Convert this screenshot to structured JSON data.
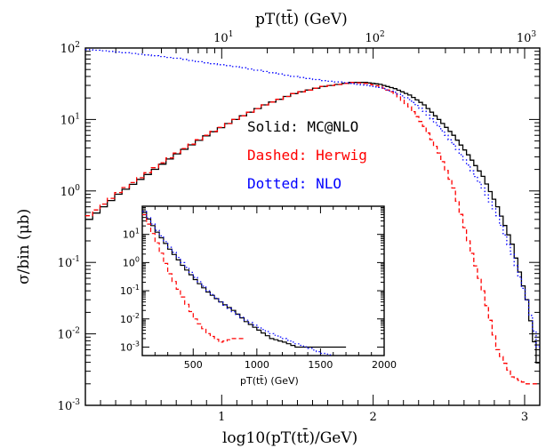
{
  "chart_data": [
    {
      "type": "line",
      "xlabel": "log10(pT(tt̄)/GeV)",
      "ylabel": "σ/bin (μb)",
      "top_axis_label": "pT(tt̄) (GeV)",
      "yscale": "log",
      "xlim": [
        0,
        3.1
      ],
      "ylim": [
        0.001,
        100
      ],
      "x_ticks": [
        "1",
        "2",
        "3"
      ],
      "y_ticks": [
        "10-3",
        "10-2",
        "10-1",
        "100",
        "101",
        "102"
      ],
      "top_ticks": [
        "101",
        "102",
        "103"
      ],
      "legend": {
        "solid": "Solid: MC@NLO",
        "dashed": "Dashed: Herwig",
        "dotted": "Dotted: NLO"
      },
      "colors": {
        "mcatnlo": "#000000",
        "herwig": "#ff0000",
        "nlo": "#0000ff"
      },
      "series": [
        {
          "name": "MC@NLO",
          "x": [
            0.0,
            0.2,
            0.4,
            0.6,
            0.8,
            1.0,
            1.2,
            1.4,
            1.6,
            1.8,
            1.9,
            2.0,
            2.1,
            2.2,
            2.3,
            2.4,
            2.5,
            2.6,
            2.7,
            2.8,
            2.9,
            3.0,
            3.1
          ],
          "y": [
            0.4,
            0.9,
            1.7,
            3.3,
            5.9,
            10,
            16,
            23,
            29,
            33,
            33,
            31,
            27,
            22,
            16,
            10,
            6,
            3.2,
            1.6,
            0.6,
            0.18,
            0.03,
            0.002
          ]
        },
        {
          "name": "Herwig",
          "x": [
            0.0,
            0.2,
            0.4,
            0.6,
            0.8,
            1.0,
            1.2,
            1.4,
            1.6,
            1.8,
            1.9,
            2.0,
            2.1,
            2.2,
            2.3,
            2.4,
            2.5,
            2.6,
            2.7,
            2.8,
            2.9,
            3.0,
            3.1
          ],
          "y": [
            0.45,
            0.95,
            1.8,
            3.4,
            6.0,
            10,
            16,
            23,
            29,
            33,
            32,
            29,
            23,
            15,
            8,
            3.4,
            1.1,
            0.2,
            0.04,
            0.006,
            0.0025,
            0.002,
            0.002
          ]
        },
        {
          "name": "NLO",
          "x": [
            0.0,
            0.2,
            0.4,
            0.6,
            0.8,
            1.0,
            1.2,
            1.4,
            1.6,
            1.8,
            1.9,
            2.0,
            2.1,
            2.2,
            2.3,
            2.4,
            2.5,
            2.6,
            2.7,
            2.8,
            2.9,
            3.0,
            3.1
          ],
          "y": [
            95,
            88,
            80,
            72,
            62,
            55,
            47,
            40,
            35,
            32,
            30,
            28,
            24,
            19,
            13,
            8,
            4.5,
            2.3,
            1.1,
            0.45,
            0.13,
            0.03,
            0.004
          ]
        }
      ]
    },
    {
      "type": "line",
      "role": "inset",
      "xlabel": "pT(tt̄) (GeV)",
      "ylabel": "",
      "yscale": "log",
      "xlim": [
        100,
        2000
      ],
      "ylim": [
        0.0005,
        100
      ],
      "x_ticks": [
        "500",
        "1000",
        "1500",
        "2000"
      ],
      "y_ticks": [
        "10-3",
        "10-2",
        "10-1",
        "100",
        "101"
      ],
      "series": [
        {
          "name": "MC@NLO",
          "x": [
            100,
            200,
            300,
            400,
            500,
            600,
            700,
            800,
            900,
            1000,
            1100,
            1200,
            1300,
            1500,
            1700
          ],
          "y": [
            60,
            12,
            3.0,
            0.8,
            0.25,
            0.09,
            0.04,
            0.02,
            0.008,
            0.004,
            0.002,
            0.0015,
            0.001,
            0.001,
            0.001
          ]
        },
        {
          "name": "Herwig",
          "x": [
            100,
            200,
            300,
            400,
            500,
            600,
            700,
            800,
            900
          ],
          "y": [
            50,
            5,
            0.4,
            0.06,
            0.01,
            0.003,
            0.0015,
            0.002,
            0.002
          ]
        },
        {
          "name": "NLO",
          "x": [
            100,
            200,
            300,
            400,
            500,
            600,
            700,
            800,
            900,
            1000,
            1100,
            1200,
            1300,
            1400,
            1500,
            1600
          ],
          "y": [
            65,
            14,
            3.5,
            1.0,
            0.3,
            0.1,
            0.04,
            0.018,
            0.009,
            0.005,
            0.003,
            0.002,
            0.0013,
            0.0009,
            0.0006,
            0.0005
          ]
        }
      ]
    }
  ]
}
